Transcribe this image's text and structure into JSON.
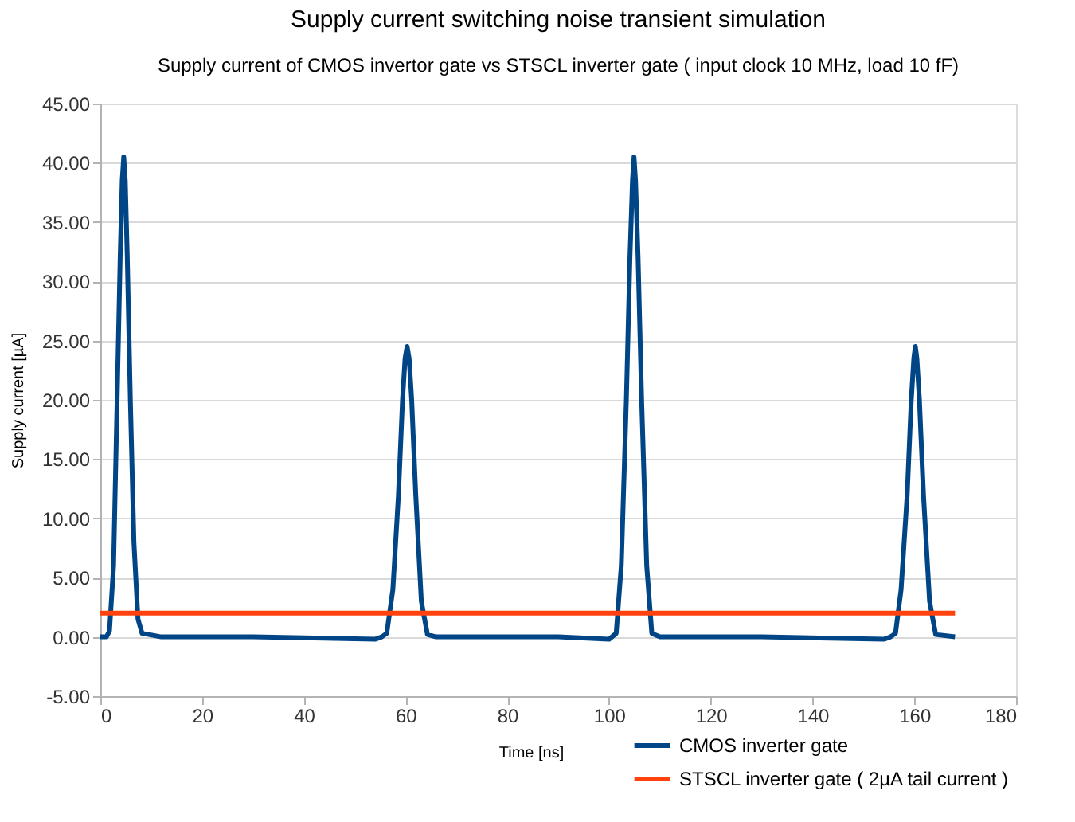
{
  "chart_data": {
    "type": "line",
    "title": "Supply current switching noise transient simulation",
    "subtitle": "Supply current of CMOS invertor gate vs STSCL inverter gate ( input clock 10 MHz, load 10 fF)",
    "xlabel": "Time [ns]",
    "ylabel": "Supply current [µA]",
    "xlim": [
      0,
      180
    ],
    "xticks": [
      0,
      20,
      40,
      60,
      80,
      100,
      120,
      140,
      160,
      180
    ],
    "ylim": [
      -5,
      45
    ],
    "yticks": [
      {
        "value": -5,
        "label": "-5.00"
      },
      {
        "value": 0,
        "label": "0.00"
      },
      {
        "value": 5,
        "label": "5.00"
      },
      {
        "value": 10,
        "label": "10.00"
      },
      {
        "value": 15,
        "label": "15.00"
      },
      {
        "value": 20,
        "label": "20.00"
      },
      {
        "value": 25,
        "label": "25.00"
      },
      {
        "value": 30,
        "label": "30.00"
      },
      {
        "value": 35,
        "label": "35.00"
      },
      {
        "value": 40,
        "label": "40.00"
      },
      {
        "value": 45,
        "label": "45.00"
      }
    ],
    "grid": "y",
    "legend": "bottom right",
    "marker": "none",
    "line_style": "solid",
    "series": [
      {
        "name": "CMOS inverter gate",
        "color": "#004586",
        "x": [
          0,
          1.2,
          1.8,
          2.6,
          3.3,
          3.9,
          4.3,
          4.6,
          4.9,
          5.3,
          5.9,
          6.6,
          7.4,
          8.2,
          9.5,
          12,
          30,
          54,
          55.3,
          56.3,
          57.5,
          58.6,
          59.4,
          59.9,
          60.3,
          60.7,
          61.2,
          62.0,
          63.1,
          64.3,
          66,
          90,
          100,
          101.4,
          102.4,
          103.4,
          104.1,
          104.6,
          104.9,
          105.2,
          105.7,
          106.4,
          107.4,
          108.4,
          110,
          130,
          154,
          155.3,
          156.3,
          157.4,
          158.6,
          159.4,
          159.9,
          160.2,
          160.5,
          161,
          161.8,
          163,
          164.2,
          168
        ],
        "values": [
          0,
          0,
          0.5,
          6,
          20,
          32,
          38.5,
          40.5,
          38.5,
          32,
          20,
          8,
          1.5,
          0.3,
          0.2,
          0,
          0,
          -0.2,
          0,
          0.3,
          4,
          12,
          20,
          23.5,
          24.5,
          23.5,
          20,
          12,
          3,
          0.2,
          0,
          0,
          -0.2,
          0.3,
          6,
          20,
          32,
          38.5,
          40.5,
          38.5,
          32,
          20,
          6,
          0.3,
          0,
          0,
          -0.2,
          0,
          0.3,
          4,
          12,
          20,
          23.5,
          24.5,
          23.5,
          20,
          12,
          3,
          0.2,
          0
        ]
      },
      {
        "name": "STSCL inverter gate ( 2µA tail current )",
        "color": "#ff420e",
        "x": [
          0,
          168
        ],
        "values": [
          2,
          2
        ]
      }
    ]
  }
}
